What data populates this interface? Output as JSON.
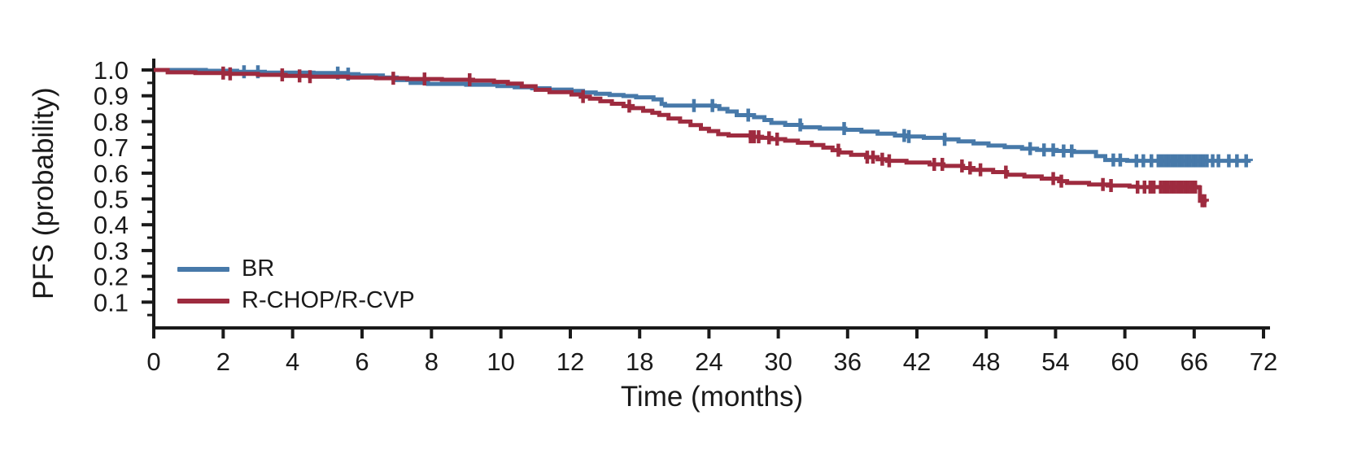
{
  "chart_data": {
    "type": "line",
    "subtype": "kaplan-meier-step-curves",
    "title": "",
    "xlabel": "Time (months)",
    "ylabel": "PFS (probability)",
    "x_ticks": [
      0,
      2,
      4,
      6,
      8,
      10,
      12,
      18,
      24,
      30,
      36,
      42,
      48,
      54,
      60,
      66,
      72
    ],
    "y_ticks": [
      0.1,
      0.2,
      0.3,
      0.4,
      0.5,
      0.6,
      0.7,
      0.8,
      0.9,
      1.0
    ],
    "y_minor_tick_step": 0.05,
    "ylim": [
      0,
      1.0
    ],
    "x_scale_note": "equal tick spacing: 2-month steps from 0-12, 6-month steps from 12-72",
    "grid": false,
    "legend": {
      "position": "lower-left",
      "entries": [
        "BR",
        "R-CHOP/R-CVP"
      ]
    },
    "axis_color": "#1a1a1a",
    "series": [
      {
        "name": "BR",
        "color": "#4779A9",
        "points": [
          [
            0,
            1.0
          ],
          [
            1.5,
            0.997
          ],
          [
            2.4,
            0.993
          ],
          [
            3.2,
            0.99
          ],
          [
            4.6,
            0.988
          ],
          [
            5.5,
            0.984
          ],
          [
            5.9,
            0.979
          ],
          [
            6.6,
            0.971
          ],
          [
            7.0,
            0.961
          ],
          [
            7.4,
            0.95
          ],
          [
            7.9,
            0.946
          ],
          [
            9.0,
            0.943
          ],
          [
            9.9,
            0.938
          ],
          [
            10.4,
            0.933
          ],
          [
            10.9,
            0.929
          ],
          [
            11.4,
            0.924
          ],
          [
            12.1,
            0.919
          ],
          [
            13.1,
            0.913
          ],
          [
            14.2,
            0.908
          ],
          [
            15.4,
            0.903
          ],
          [
            16.6,
            0.899
          ],
          [
            17.7,
            0.894
          ],
          [
            19.2,
            0.886
          ],
          [
            19.9,
            0.868
          ],
          [
            20.2,
            0.862
          ],
          [
            24.5,
            0.86
          ],
          [
            24.9,
            0.849
          ],
          [
            25.6,
            0.839
          ],
          [
            26.4,
            0.825
          ],
          [
            27.9,
            0.817
          ],
          [
            28.8,
            0.806
          ],
          [
            29.4,
            0.795
          ],
          [
            30.6,
            0.787
          ],
          [
            32.0,
            0.778
          ],
          [
            33.6,
            0.773
          ],
          [
            35.8,
            0.768
          ],
          [
            37.2,
            0.761
          ],
          [
            38.6,
            0.753
          ],
          [
            40.1,
            0.746
          ],
          [
            41.0,
            0.742
          ],
          [
            42.6,
            0.737
          ],
          [
            44.4,
            0.731
          ],
          [
            45.6,
            0.723
          ],
          [
            46.9,
            0.715
          ],
          [
            48.2,
            0.707
          ],
          [
            49.6,
            0.701
          ],
          [
            51.1,
            0.695
          ],
          [
            52.4,
            0.69
          ],
          [
            54.1,
            0.686
          ],
          [
            55.6,
            0.682
          ],
          [
            57.5,
            0.666
          ],
          [
            58.3,
            0.651
          ],
          [
            60.2,
            0.648
          ],
          [
            70.9,
            0.647
          ]
        ],
        "censor_times": [
          2.6,
          3.0,
          5.3,
          5.6,
          22.7,
          24.3,
          27.4,
          31.9,
          35.7,
          40.9,
          41.3,
          44.4,
          51.8,
          53.0,
          53.8,
          54.7,
          55.4,
          59.0,
          59.6,
          61.0,
          61.6,
          62.3,
          62.9,
          63.2,
          63.5,
          63.8,
          64.1,
          64.4,
          64.7,
          65.0,
          65.3,
          65.6,
          65.9,
          66.2,
          66.5,
          66.8,
          67.1,
          67.6,
          68.1,
          69.0,
          69.7,
          70.5
        ]
      },
      {
        "name": "R-CHOP/R-CVP",
        "color": "#9E2B3F",
        "points": [
          [
            0,
            1.0
          ],
          [
            0.4,
            0.991
          ],
          [
            1.2,
            0.988
          ],
          [
            2.1,
            0.985
          ],
          [
            3.0,
            0.981
          ],
          [
            3.8,
            0.977
          ],
          [
            4.5,
            0.974
          ],
          [
            5.6,
            0.971
          ],
          [
            6.4,
            0.968
          ],
          [
            7.3,
            0.965
          ],
          [
            8.3,
            0.962
          ],
          [
            9.2,
            0.959
          ],
          [
            9.8,
            0.954
          ],
          [
            10.2,
            0.947
          ],
          [
            10.6,
            0.937
          ],
          [
            11.0,
            0.923
          ],
          [
            11.4,
            0.914
          ],
          [
            12.1,
            0.905
          ],
          [
            12.9,
            0.897
          ],
          [
            13.7,
            0.889
          ],
          [
            14.6,
            0.879
          ],
          [
            15.6,
            0.869
          ],
          [
            16.6,
            0.86
          ],
          [
            17.4,
            0.852
          ],
          [
            18.3,
            0.842
          ],
          [
            19.1,
            0.834
          ],
          [
            19.7,
            0.826
          ],
          [
            20.5,
            0.812
          ],
          [
            21.5,
            0.8
          ],
          [
            22.4,
            0.786
          ],
          [
            23.3,
            0.772
          ],
          [
            24.0,
            0.763
          ],
          [
            24.8,
            0.751
          ],
          [
            25.7,
            0.746
          ],
          [
            27.6,
            0.741
          ],
          [
            28.6,
            0.737
          ],
          [
            29.4,
            0.732
          ],
          [
            30.6,
            0.726
          ],
          [
            31.7,
            0.718
          ],
          [
            32.9,
            0.709
          ],
          [
            33.9,
            0.699
          ],
          [
            34.7,
            0.689
          ],
          [
            35.3,
            0.68
          ],
          [
            36.3,
            0.671
          ],
          [
            37.6,
            0.662
          ],
          [
            38.6,
            0.654
          ],
          [
            39.4,
            0.648
          ],
          [
            41.1,
            0.641
          ],
          [
            43.1,
            0.634
          ],
          [
            44.3,
            0.628
          ],
          [
            46.0,
            0.62
          ],
          [
            46.9,
            0.613
          ],
          [
            48.6,
            0.604
          ],
          [
            49.8,
            0.594
          ],
          [
            51.3,
            0.587
          ],
          [
            52.8,
            0.579
          ],
          [
            54.3,
            0.569
          ],
          [
            55.0,
            0.562
          ],
          [
            56.9,
            0.556
          ],
          [
            58.5,
            0.552
          ],
          [
            60.4,
            0.548
          ],
          [
            61.1,
            0.546
          ],
          [
            66.4,
            0.545
          ],
          [
            66.5,
            0.493
          ],
          [
            67.1,
            0.49
          ]
        ],
        "censor_times": [
          2.0,
          2.2,
          3.7,
          4.2,
          4.5,
          6.9,
          7.8,
          9.1,
          13.1,
          17.1,
          27.6,
          27.9,
          28.3,
          29.2,
          29.9,
          35.2,
          37.7,
          38.2,
          39.0,
          39.6,
          43.5,
          44.2,
          45.9,
          46.6,
          47.5,
          49.7,
          53.8,
          54.5,
          58.1,
          58.8,
          61.1,
          61.7,
          62.2,
          62.5,
          63.1,
          63.4,
          63.7,
          64.0,
          64.3,
          64.6,
          64.9,
          65.2,
          65.5,
          65.8,
          66.1,
          66.7,
          66.9
        ]
      }
    ]
  }
}
